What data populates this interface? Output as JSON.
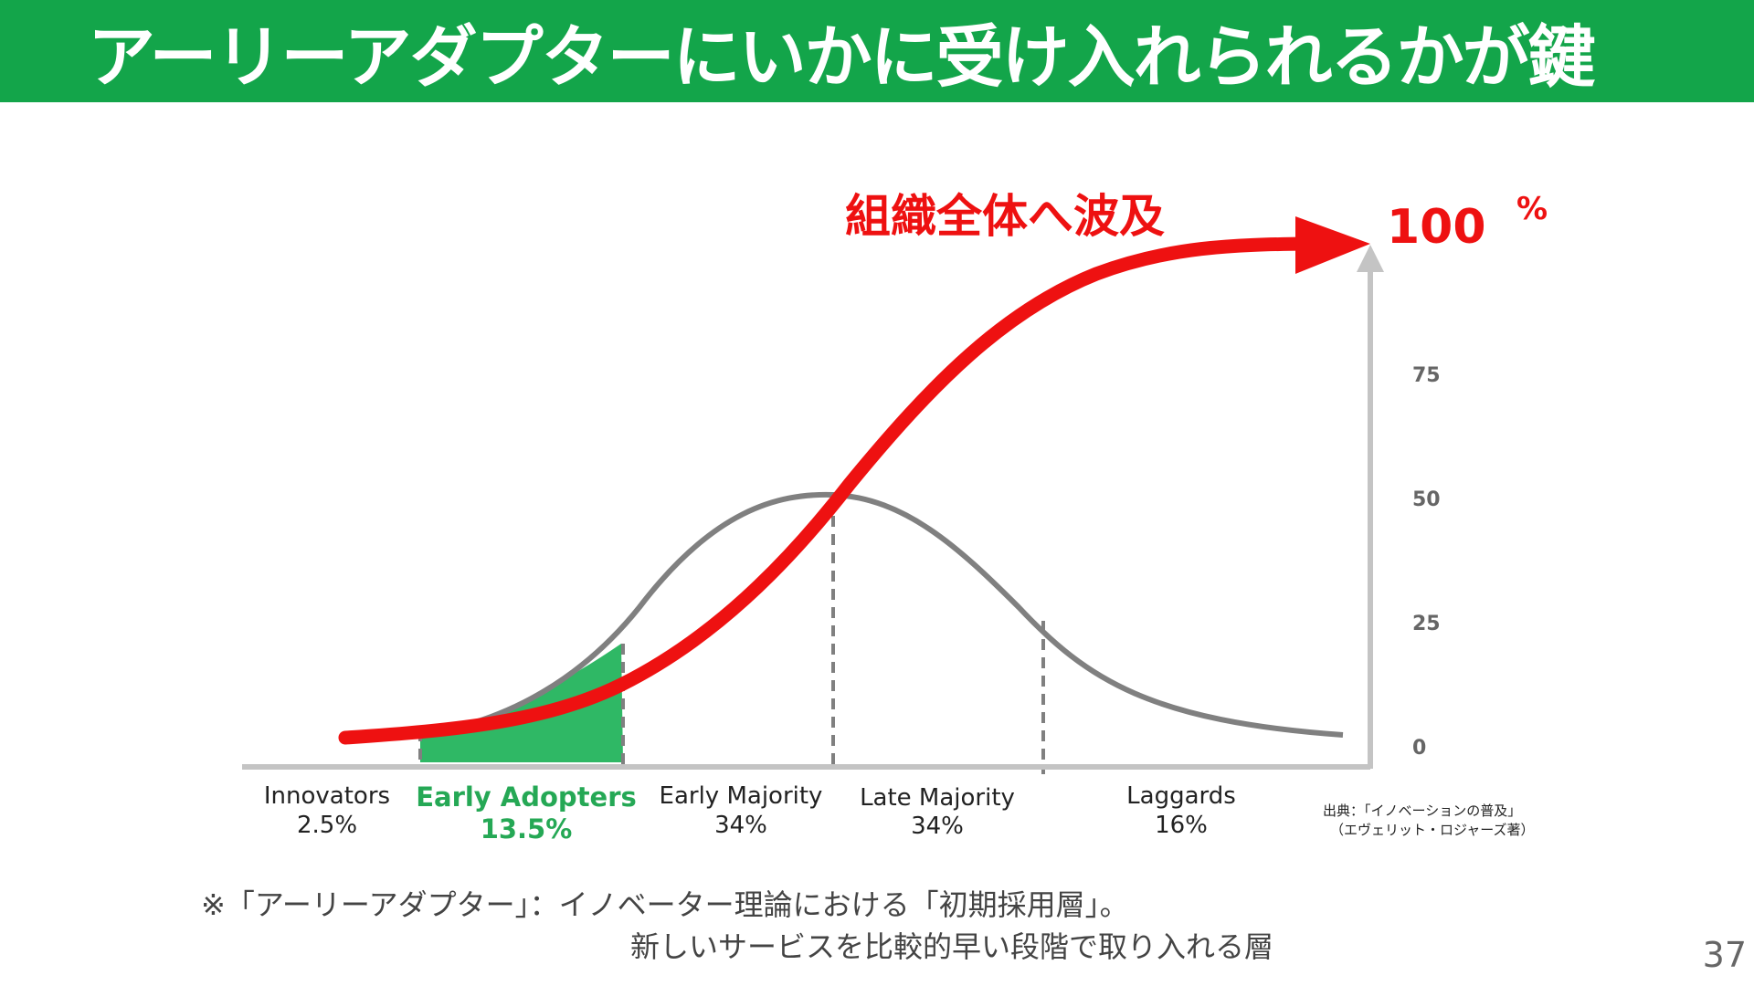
{
  "header": {
    "title": "アーリーアダプターにいかに受け入れられるかが鍵"
  },
  "diagram": {
    "wave_label": "組織全体へ波及",
    "top_value": "100",
    "top_unit": "%",
    "y_ticks": [
      "0",
      "25",
      "50",
      "75"
    ],
    "segments": [
      {
        "name": "Innovators",
        "pct": "2.5%",
        "highlight": false
      },
      {
        "name": "Early Adopters",
        "pct": "13.5%",
        "highlight": true
      },
      {
        "name": "Early Majority",
        "pct": "34%",
        "highlight": false
      },
      {
        "name": "Late Majority",
        "pct": "34%",
        "highlight": false
      },
      {
        "name": "Laggards",
        "pct": "16%",
        "highlight": false
      }
    ],
    "source_line1": "出典：「イノベーションの普及」",
    "source_line2": "（エヴェリット・ロジャーズ著）",
    "colors": {
      "curve": "#ee1111",
      "bell": "#808080",
      "highlight": "#2fb865",
      "banner": "#13a54a"
    }
  },
  "footnote": {
    "line1": "※「アーリーアダプター」：イノベーター理論における「初期採用層」。",
    "line2": "新しいサービスを比較的早い段階で取り入れる層"
  },
  "page_number": "37"
}
